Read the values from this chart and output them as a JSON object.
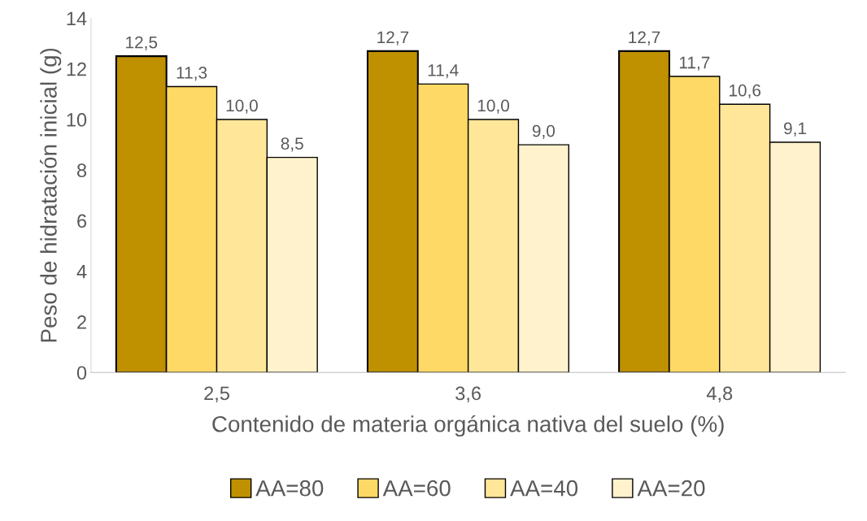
{
  "chart_data": {
    "type": "bar",
    "xlabel": "Contenido de materia orgánica nativa del suelo (%)",
    "ylabel": "Peso de hidratación inicial (g)",
    "categories": [
      "2,5",
      "3,6",
      "4,8"
    ],
    "series": [
      {
        "name": "AA=80",
        "color": "#bf9000",
        "values": [
          12.5,
          12.7,
          12.7
        ],
        "value_labels": [
          "12,5",
          "12,7",
          "12,7"
        ]
      },
      {
        "name": "AA=60",
        "color": "#ffd966",
        "values": [
          11.3,
          11.4,
          11.7
        ],
        "value_labels": [
          "11,3",
          "11,4",
          "11,7"
        ]
      },
      {
        "name": "AA=40",
        "color": "#ffe699",
        "values": [
          10.0,
          10.0,
          10.6
        ],
        "value_labels": [
          "10,0",
          "10,0",
          "10,6"
        ]
      },
      {
        "name": "AA=20",
        "color": "#fff2cc",
        "values": [
          8.5,
          9.0,
          9.1
        ],
        "value_labels": [
          "8,5",
          "9,0",
          "9,1"
        ]
      }
    ],
    "ylim": [
      0,
      14
    ],
    "yticks": [
      0,
      2,
      4,
      6,
      8,
      10,
      12,
      14
    ],
    "grid": false,
    "legend": "bottom"
  }
}
